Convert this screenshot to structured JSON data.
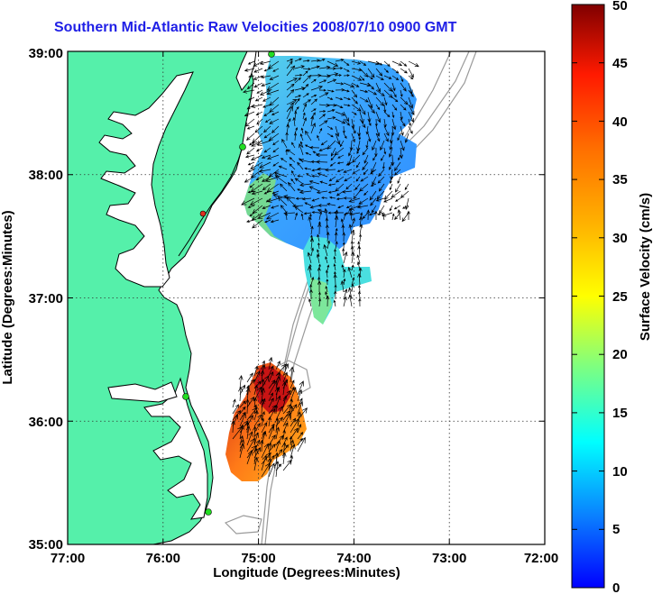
{
  "title": "Southern Mid-Atlantic Raw Velocities 2008/07/10 0900 GMT",
  "map": {
    "xlabel": "Longitude (Degrees:Minutes)",
    "ylabel": "Latitude (Degrees:Minutes)",
    "x_ticks": [
      "77:00",
      "76:00",
      "75:00",
      "74:00",
      "73:00",
      "72:00"
    ],
    "y_ticks": [
      "39:00",
      "38:00",
      "37:00",
      "36:00",
      "35:00"
    ],
    "lon_range": [
      -77,
      -72
    ],
    "lat_range": [
      35,
      39
    ],
    "grid": "dotted",
    "colors": {
      "land": "#55f0aa",
      "coast": "#000000",
      "bathymetry": "#9a9a9a",
      "station": "#22dd22",
      "station_alt": "#e03020"
    }
  },
  "colorbar": {
    "label": "Surface Velocity (cm/s)",
    "ticks": [
      "0",
      "5",
      "10",
      "15",
      "20",
      "25",
      "30",
      "35",
      "40",
      "45",
      "50"
    ],
    "range": [
      0,
      50
    ],
    "colormap": "jet"
  }
}
